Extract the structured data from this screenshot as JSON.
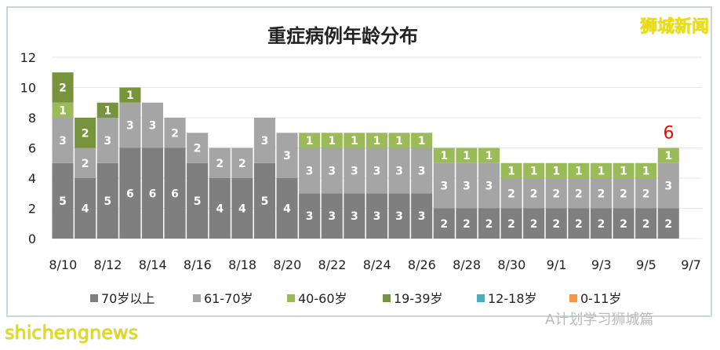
{
  "chart_data": {
    "type": "bar",
    "stacked": true,
    "title": "重症病例年龄分布",
    "categories": [
      "8/10",
      "8/11",
      "8/12",
      "8/13",
      "8/14",
      "8/15",
      "8/16",
      "8/17",
      "8/18",
      "8/19",
      "8/20",
      "8/21",
      "8/22",
      "8/23",
      "8/24",
      "8/25",
      "8/26",
      "8/27",
      "8/28",
      "8/29",
      "8/30",
      "8/31",
      "9/1",
      "9/2",
      "9/3",
      "9/4",
      "9/5",
      "9/6",
      "9/7"
    ],
    "x_tick_labels": [
      "8/10",
      "8/12",
      "8/14",
      "8/16",
      "8/18",
      "8/20",
      "8/22",
      "8/24",
      "8/26",
      "8/28",
      "8/30",
      "9/1",
      "9/3",
      "9/5",
      "9/7"
    ],
    "y_ticks": [
      "0",
      "2",
      "4",
      "6",
      "8",
      "10",
      "12"
    ],
    "ylim": [
      0,
      12
    ],
    "grid": true,
    "legend_position": "bottom",
    "series": [
      {
        "name": "70岁以上",
        "color": "#7f7f7f",
        "values": [
          5,
          4,
          5,
          6,
          6,
          6,
          5,
          4,
          4,
          5,
          4,
          3,
          3,
          3,
          3,
          3,
          3,
          2,
          2,
          2,
          2,
          2,
          2,
          2,
          2,
          2,
          2,
          2,
          0
        ]
      },
      {
        "name": "61-70岁",
        "color": "#a5a5a5",
        "values": [
          3,
          2,
          3,
          3,
          3,
          2,
          2,
          2,
          2,
          3,
          3,
          3,
          3,
          3,
          3,
          3,
          3,
          3,
          3,
          3,
          2,
          2,
          2,
          2,
          2,
          2,
          2,
          3,
          0
        ]
      },
      {
        "name": "40-60岁",
        "color": "#9bbb59",
        "values": [
          1,
          0,
          0,
          0,
          0,
          0,
          0,
          0,
          0,
          0,
          0,
          1,
          1,
          1,
          1,
          1,
          1,
          1,
          1,
          1,
          1,
          1,
          1,
          1,
          1,
          1,
          1,
          1,
          0
        ]
      },
      {
        "name": "19-39岁",
        "color": "#77933c",
        "values": [
          2,
          2,
          1,
          1,
          0,
          0,
          0,
          0,
          0,
          0,
          0,
          0,
          0,
          0,
          0,
          0,
          0,
          0,
          0,
          0,
          0,
          0,
          0,
          0,
          0,
          0,
          0,
          0,
          0
        ]
      },
      {
        "name": "12-18岁",
        "color": "#4bacc6",
        "values": [
          0,
          0,
          0,
          0,
          0,
          0,
          0,
          0,
          0,
          0,
          0,
          0,
          0,
          0,
          0,
          0,
          0,
          0,
          0,
          0,
          0,
          0,
          0,
          0,
          0,
          0,
          0,
          0,
          0
        ]
      },
      {
        "name": "0-11岁",
        "color": "#f79646",
        "values": [
          0,
          0,
          0,
          0,
          0,
          0,
          0,
          0,
          0,
          0,
          0,
          0,
          0,
          0,
          0,
          0,
          0,
          0,
          0,
          0,
          0,
          0,
          0,
          0,
          0,
          0,
          0,
          0,
          0
        ]
      }
    ],
    "annotation": {
      "text": "6",
      "category": "9/6",
      "color": "#ff0000"
    }
  },
  "watermarks": {
    "top_right": "狮城新闻",
    "bottom_left": "shichengnews",
    "wechat": "A计划学习狮城篇"
  }
}
